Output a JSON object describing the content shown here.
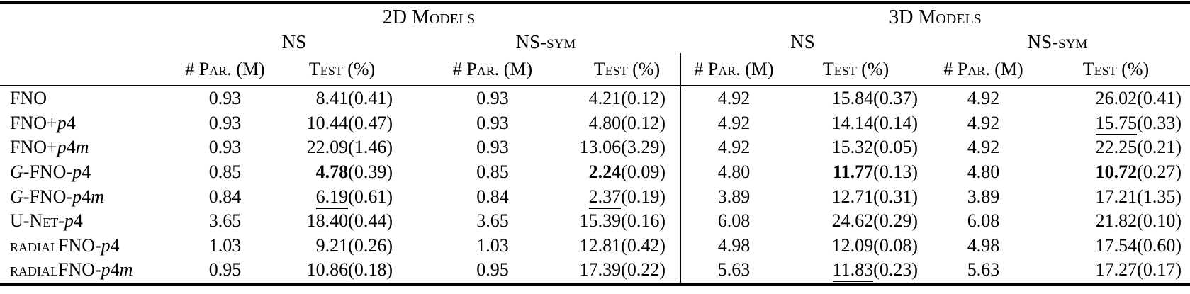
{
  "table": {
    "group_headers": [
      "2D Models",
      "3D Models"
    ],
    "dataset_headers": [
      "NS",
      "NS-sym",
      "NS",
      "NS-sym"
    ],
    "col_headers": [
      "# Par. (M)",
      "Test (%)",
      "# Par. (M)",
      "Test (%)",
      "# Par. (M)",
      "Test (%)",
      "# Par. (M)",
      "Test (%)"
    ],
    "text_color": "#000000",
    "background_color": "#ffffff",
    "rows": [
      {
        "model": "FNO",
        "label_parts": [
          [
            "FNO",
            "n"
          ]
        ],
        "pairs": [
          {
            "par": "0.93",
            "test": "8.41",
            "std": "0.41",
            "em": "none"
          },
          {
            "par": "0.93",
            "test": "4.21",
            "std": "0.12",
            "em": "none"
          },
          {
            "par": "4.92",
            "test": "15.84",
            "std": "0.37",
            "em": "none"
          },
          {
            "par": "4.92",
            "test": "26.02",
            "std": "0.41",
            "em": "none"
          }
        ]
      },
      {
        "model": "FNO+p4",
        "label_parts": [
          [
            "FNO+",
            "n"
          ],
          [
            "p",
            "i"
          ],
          [
            "4",
            "n"
          ]
        ],
        "pairs": [
          {
            "par": "0.93",
            "test": "10.44",
            "std": "0.47",
            "em": "none"
          },
          {
            "par": "0.93",
            "test": "4.80",
            "std": "0.12",
            "em": "none"
          },
          {
            "par": "4.92",
            "test": "14.14",
            "std": "0.14",
            "em": "none"
          },
          {
            "par": "4.92",
            "test": "15.75",
            "std": "0.33",
            "em": "underline"
          }
        ]
      },
      {
        "model": "FNO+p4m",
        "label_parts": [
          [
            "FNO+",
            "n"
          ],
          [
            "p",
            "i"
          ],
          [
            "4",
            "n"
          ],
          [
            "m",
            "i"
          ]
        ],
        "pairs": [
          {
            "par": "0.93",
            "test": "22.09",
            "std": "1.46",
            "em": "none"
          },
          {
            "par": "0.93",
            "test": "13.06",
            "std": "3.29",
            "em": "none"
          },
          {
            "par": "4.92",
            "test": "15.32",
            "std": "0.05",
            "em": "none"
          },
          {
            "par": "4.92",
            "test": "22.25",
            "std": "0.21",
            "em": "none"
          }
        ]
      },
      {
        "model": "G-FNO-p4",
        "label_parts": [
          [
            "G",
            "i"
          ],
          [
            "-FNO-",
            "n"
          ],
          [
            "p",
            "i"
          ],
          [
            "4",
            "n"
          ]
        ],
        "pairs": [
          {
            "par": "0.85",
            "test": "4.78",
            "std": "0.39",
            "em": "bold"
          },
          {
            "par": "0.85",
            "test": "2.24",
            "std": "0.09",
            "em": "bold"
          },
          {
            "par": "4.80",
            "test": "11.77",
            "std": "0.13",
            "em": "bold"
          },
          {
            "par": "4.80",
            "test": "10.72",
            "std": "0.27",
            "em": "bold"
          }
        ]
      },
      {
        "model": "G-FNO-p4m",
        "label_parts": [
          [
            "G",
            "i"
          ],
          [
            "-FNO-",
            "n"
          ],
          [
            "p",
            "i"
          ],
          [
            "4",
            "n"
          ],
          [
            "m",
            "i"
          ]
        ],
        "pairs": [
          {
            "par": "0.84",
            "test": "6.19",
            "std": "0.61",
            "em": "underline"
          },
          {
            "par": "0.84",
            "test": "2.37",
            "std": "0.19",
            "em": "underline"
          },
          {
            "par": "3.89",
            "test": "12.71",
            "std": "0.31",
            "em": "none"
          },
          {
            "par": "3.89",
            "test": "17.21",
            "std": "1.35",
            "em": "none"
          }
        ]
      },
      {
        "model": "U-Net-p4",
        "label_parts": [
          [
            "U-Net",
            "sc"
          ],
          [
            "-",
            "n"
          ],
          [
            "p",
            "i"
          ],
          [
            "4",
            "n"
          ]
        ],
        "pairs": [
          {
            "par": "3.65",
            "test": "18.40",
            "std": "0.44",
            "em": "none"
          },
          {
            "par": "3.65",
            "test": "15.39",
            "std": "0.16",
            "em": "none"
          },
          {
            "par": "6.08",
            "test": "24.62",
            "std": "0.29",
            "em": "none"
          },
          {
            "par": "6.08",
            "test": "21.82",
            "std": "0.10",
            "em": "none"
          }
        ]
      },
      {
        "model": "radialFNO-p4",
        "label_parts": [
          [
            "radial",
            "sc"
          ],
          [
            "FNO-",
            "n"
          ],
          [
            "p",
            "i"
          ],
          [
            "4",
            "n"
          ]
        ],
        "pairs": [
          {
            "par": "1.03",
            "test": "9.21",
            "std": "0.26",
            "em": "none"
          },
          {
            "par": "1.03",
            "test": "12.81",
            "std": "0.42",
            "em": "none"
          },
          {
            "par": "4.98",
            "test": "12.09",
            "std": "0.08",
            "em": "none"
          },
          {
            "par": "4.98",
            "test": "17.54",
            "std": "0.60",
            "em": "none"
          }
        ]
      },
      {
        "model": "radialFNO-p4m",
        "label_parts": [
          [
            "radial",
            "sc"
          ],
          [
            "FNO-",
            "n"
          ],
          [
            "p",
            "i"
          ],
          [
            "4",
            "n"
          ],
          [
            "m",
            "i"
          ]
        ],
        "pairs": [
          {
            "par": "0.95",
            "test": "10.86",
            "std": "0.18",
            "em": "none"
          },
          {
            "par": "0.95",
            "test": "17.39",
            "std": "0.22",
            "em": "none"
          },
          {
            "par": "5.63",
            "test": "11.83",
            "std": "0.23",
            "em": "underline"
          },
          {
            "par": "5.63",
            "test": "17.27",
            "std": "0.17",
            "em": "none"
          }
        ]
      }
    ]
  }
}
